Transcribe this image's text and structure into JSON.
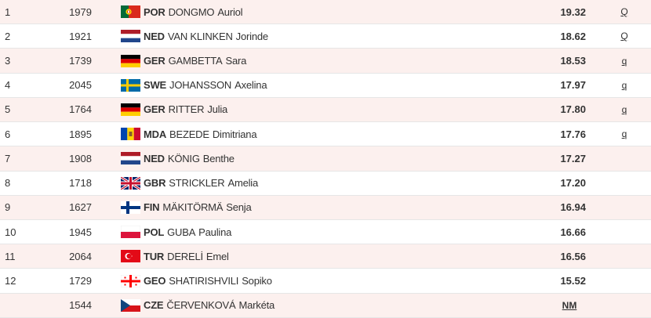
{
  "results": [
    {
      "rank": "1",
      "bib": "1979",
      "country": "POR",
      "surname": "DONGMO",
      "firstname": "Auriol",
      "mark": "19.32",
      "qual": "Q",
      "flag": "por"
    },
    {
      "rank": "2",
      "bib": "1921",
      "country": "NED",
      "surname": "VAN KLINKEN",
      "firstname": "Jorinde",
      "mark": "18.62",
      "qual": "Q",
      "flag": "ned"
    },
    {
      "rank": "3",
      "bib": "1739",
      "country": "GER",
      "surname": "GAMBETTA",
      "firstname": "Sara",
      "mark": "18.53",
      "qual": "q",
      "flag": "ger"
    },
    {
      "rank": "4",
      "bib": "2045",
      "country": "SWE",
      "surname": "JOHANSSON",
      "firstname": "Axelina",
      "mark": "17.97",
      "qual": "q",
      "flag": "swe"
    },
    {
      "rank": "5",
      "bib": "1764",
      "country": "GER",
      "surname": "RITTER",
      "firstname": "Julia",
      "mark": "17.80",
      "qual": "q",
      "flag": "ger"
    },
    {
      "rank": "6",
      "bib": "1895",
      "country": "MDA",
      "surname": "BEZEDE",
      "firstname": "Dimitriana",
      "mark": "17.76",
      "qual": "q",
      "flag": "mda"
    },
    {
      "rank": "7",
      "bib": "1908",
      "country": "NED",
      "surname": "KÖNIG",
      "firstname": "Benthe",
      "mark": "17.27",
      "qual": "",
      "flag": "ned"
    },
    {
      "rank": "8",
      "bib": "1718",
      "country": "GBR",
      "surname": "STRICKLER",
      "firstname": "Amelia",
      "mark": "17.20",
      "qual": "",
      "flag": "gbr"
    },
    {
      "rank": "9",
      "bib": "1627",
      "country": "FIN",
      "surname": "MÄKITÖRMÄ",
      "firstname": "Senja",
      "mark": "16.94",
      "qual": "",
      "flag": "fin"
    },
    {
      "rank": "10",
      "bib": "1945",
      "country": "POL",
      "surname": "GUBA",
      "firstname": "Paulina",
      "mark": "16.66",
      "qual": "",
      "flag": "pol"
    },
    {
      "rank": "11",
      "bib": "2064",
      "country": "TUR",
      "surname": "DERELİ",
      "firstname": "Emel",
      "mark": "16.56",
      "qual": "",
      "flag": "tur"
    },
    {
      "rank": "12",
      "bib": "1729",
      "country": "GEO",
      "surname": "SHATIRISHVILI",
      "firstname": "Sopiko",
      "mark": "15.52",
      "qual": "",
      "flag": "geo"
    },
    {
      "rank": "",
      "bib": "1544",
      "country": "CZE",
      "surname": "ČERVENKOVÁ",
      "firstname": "Markéta",
      "mark": "NM",
      "qual": "",
      "flag": "cze"
    }
  ],
  "colors": {
    "alt_row": "#fcf0ee",
    "text": "#333333",
    "divider": "#e6e6e6"
  }
}
